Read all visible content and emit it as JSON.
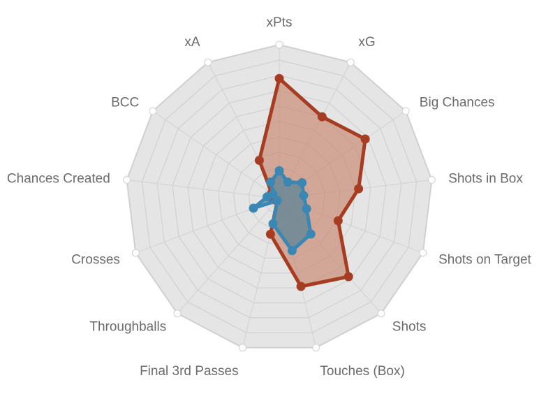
{
  "chart_data": {
    "type": "radar",
    "axes": [
      "xPts",
      "xG",
      "Big Chances",
      "Shots in Box",
      "Shots on Target",
      "Shots",
      "Touches (Box)",
      "Final 3rd Passes",
      "Throughballs",
      "Crosses",
      "Chances Created",
      "BCC",
      "xA"
    ],
    "rlim": [
      0,
      100
    ],
    "grid_levels": 10,
    "grid": true,
    "legend": "none",
    "series": [
      {
        "values": [
          78,
          60,
          68,
          52,
          41,
          68,
          59,
          24,
          2,
          3,
          6,
          6,
          28
        ],
        "color": "#a63d22",
        "fill": "#c9866e"
      },
      {
        "values": [
          18,
          12,
          18,
          16,
          19,
          31,
          35,
          17,
          2,
          18,
          8,
          5,
          12
        ],
        "color": "#3a87b4",
        "fill": "#4a7f96"
      }
    ],
    "colors": {
      "web_fill": "#e5e5e5",
      "web_stroke": "#d0d0d0",
      "spoke_stroke": "#d4d4d4",
      "axis_dot": "#ffffff"
    }
  }
}
